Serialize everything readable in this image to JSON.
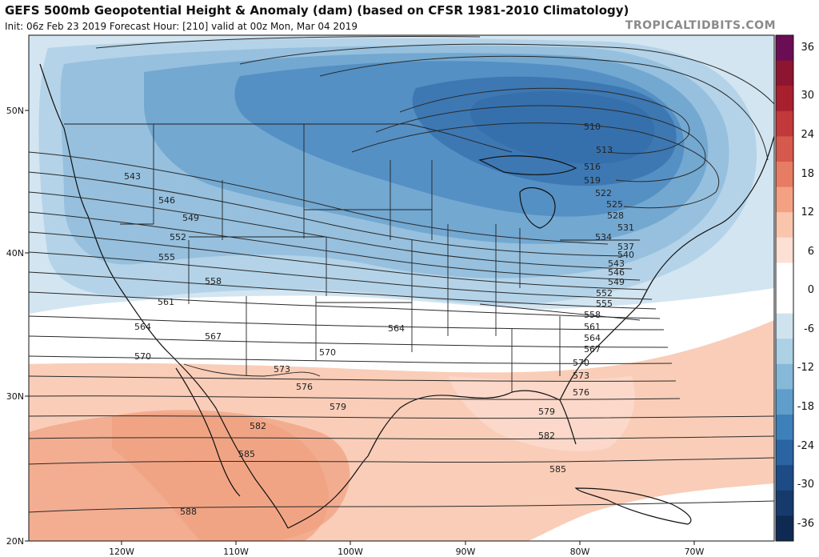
{
  "header": {
    "title": "GEFS 500mb Geopotential Height & Anomaly (dam) (based on CFSR 1981-2010 Climatology)",
    "subtitle": "Init: 06z Feb 23 2019   Forecast Hour: [210]   valid at 00z Mon, Mar 04 2019",
    "brand": "TROPICALTIDBITS.COM"
  },
  "map": {
    "lat_labels": [
      "50N",
      "40N",
      "30N",
      "20N"
    ],
    "lon_labels": [
      "120W",
      "110W",
      "100W",
      "90W",
      "80W",
      "70W"
    ]
  },
  "colorbar": {
    "ticks": [
      "36",
      "30",
      "24",
      "18",
      "12",
      "6",
      "0",
      "-6",
      "-12",
      "-18",
      "-24",
      "-30",
      "-36"
    ],
    "colors": [
      "#6a0d55",
      "#8e1530",
      "#a8202e",
      "#c1393a",
      "#d6594d",
      "#e67c62",
      "#f4a183",
      "#f9c6ad",
      "#fbe0d3",
      "#ffffff",
      "#ffffff",
      "#cfe3ef",
      "#acd0e4",
      "#86b8d8",
      "#5f9dca",
      "#3e80b9",
      "#2a64a3",
      "#1d4b86",
      "#163a6b",
      "#0f2a52"
    ]
  },
  "contour_labels": [
    "543",
    "546",
    "549",
    "552",
    "555",
    "558",
    "561",
    "564",
    "567",
    "570",
    "573",
    "576",
    "579",
    "582",
    "585",
    "588",
    "510",
    "513",
    "516",
    "519",
    "522",
    "525",
    "528",
    "531",
    "534",
    "537",
    "540",
    "543",
    "546",
    "549",
    "552",
    "555",
    "558",
    "561",
    "564",
    "567",
    "570",
    "573",
    "576",
    "579",
    "582",
    "585",
    "564",
    "570",
    "573",
    "576",
    "579",
    "582",
    "585",
    "588"
  ]
}
